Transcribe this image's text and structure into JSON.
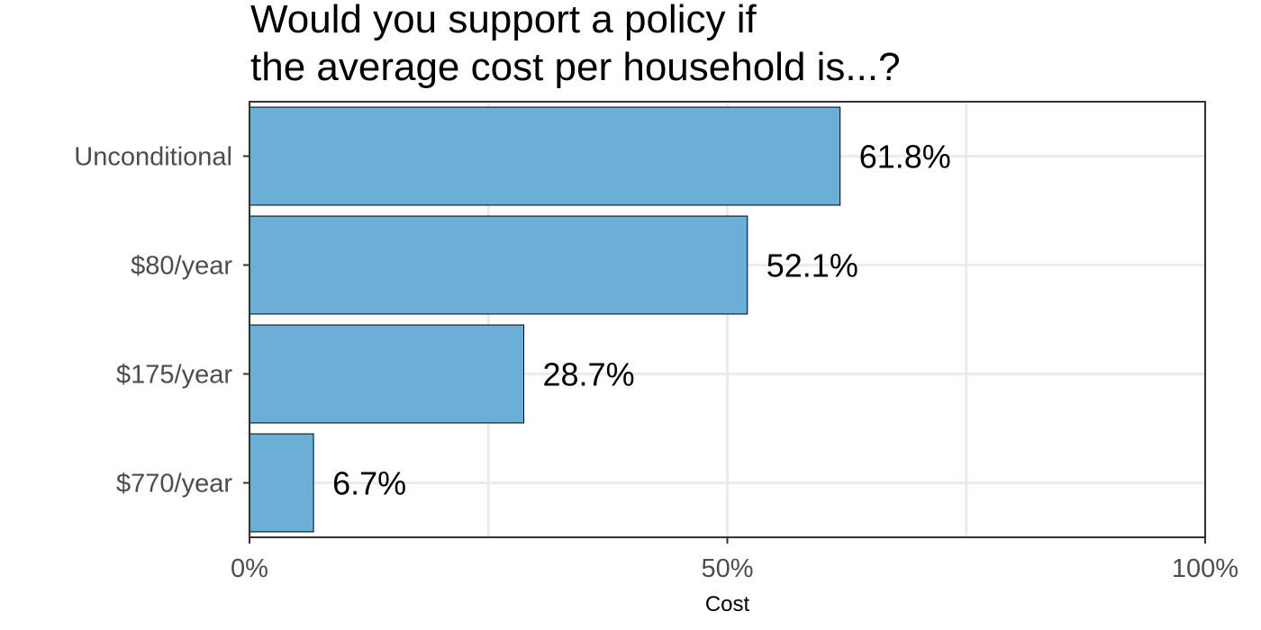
{
  "chart_data": {
    "type": "bar",
    "orientation": "horizontal",
    "title": [
      "Would you support a policy if",
      "the average cost per household is...?"
    ],
    "categories": [
      "Unconditional",
      "$80/year",
      "$175/year",
      "$770/year"
    ],
    "values": [
      61.8,
      52.1,
      28.7,
      6.7
    ],
    "data_labels": [
      "61.8%",
      "52.1%",
      "28.7%",
      "6.7%"
    ],
    "xlabel": "Cost",
    "ylabel": "",
    "xlim": [
      0,
      100
    ],
    "x_ticks": [
      0,
      50,
      100
    ],
    "x_tick_labels": [
      "0%",
      "50%",
      "100%"
    ],
    "grid": true,
    "legend": "none",
    "colors": {
      "bar_fill": "#6baed6",
      "bar_stroke": "#000000",
      "grid_major": "#ebebeb",
      "panel_border": "#333333",
      "axis_text": "#4d4d4d"
    }
  }
}
